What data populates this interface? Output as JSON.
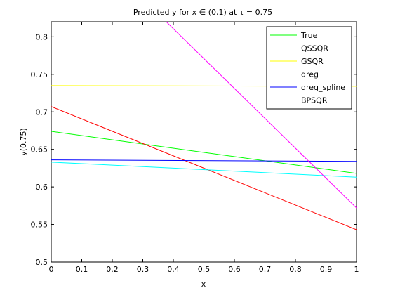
{
  "chart_data": {
    "type": "line",
    "title": "Predicted y for x ∈ (0,1) at τ = 0.75",
    "xlabel": "x",
    "ylabel": "y(0.75)",
    "xlim": [
      0,
      1
    ],
    "ylim": [
      0.5,
      0.82
    ],
    "xticks": [
      0,
      0.1,
      0.2,
      0.3,
      0.4,
      0.5,
      0.6,
      0.7,
      0.8,
      0.9,
      1
    ],
    "xtick_labels": [
      "0",
      "0.1",
      "0.2",
      "0.3",
      "0.4",
      "0.5",
      "0.6",
      "0.7",
      "0.8",
      "0.9",
      "1"
    ],
    "yticks": [
      0.5,
      0.55,
      0.6,
      0.65,
      0.7,
      0.75,
      0.8
    ],
    "ytick_labels": [
      "0.5",
      "0.55",
      "0.6",
      "0.65",
      "0.7",
      "0.75",
      "0.8"
    ],
    "grid": false,
    "legend_position": "top-right",
    "series": [
      {
        "name": "True",
        "color": "#00ff00",
        "x": [
          0,
          1
        ],
        "y": [
          0.674,
          0.618
        ]
      },
      {
        "name": "QSSQR",
        "color": "#ff0000",
        "x": [
          0,
          1
        ],
        "y": [
          0.707,
          0.543
        ]
      },
      {
        "name": "GSQR",
        "color": "#ffff00",
        "x": [
          0,
          1
        ],
        "y": [
          0.735,
          0.734
        ]
      },
      {
        "name": "qreg",
        "color": "#00ffff",
        "x": [
          0,
          1
        ],
        "y": [
          0.633,
          0.613
        ]
      },
      {
        "name": "qreg_spline",
        "color": "#0000ff",
        "x": [
          0,
          1
        ],
        "y": [
          0.636,
          0.634
        ]
      },
      {
        "name": "BPSQR",
        "color": "#ff00ff",
        "x": [
          0,
          1
        ],
        "y": [
          0.97,
          0.572
        ]
      }
    ]
  }
}
